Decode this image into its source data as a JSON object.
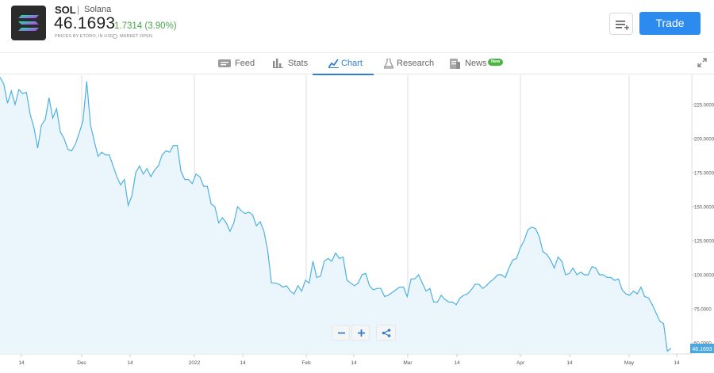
{
  "instrument": {
    "symbol": "SOL",
    "separator": "|",
    "name": "Solana",
    "price": "46.1693",
    "change": "1.7314 (3.90%)",
    "prices_note": "PRICES BY ETORO, IN USD",
    "market_status": "MARKET OPEN"
  },
  "actions": {
    "trade_label": "Trade",
    "menu_icon": "list-add-icon"
  },
  "tabs": [
    {
      "label": "Feed",
      "icon": "feed-icon"
    },
    {
      "label": "Stats",
      "icon": "bar-chart-icon"
    },
    {
      "label": "Chart",
      "icon": "line-chart-icon",
      "active": true
    },
    {
      "label": "Research",
      "icon": "flask-icon"
    },
    {
      "label": "News",
      "icon": "news-icon",
      "badge": "New"
    }
  ],
  "colors": {
    "accent": "#2d8bf0",
    "positive": "#4aa34a",
    "line": "#4fb1e0",
    "fill": "#eaf5fc",
    "badge": "#4bb543"
  },
  "chart_data": {
    "type": "area",
    "x_tick_labels": [
      "14",
      "Dec",
      "14",
      "2022",
      "14",
      "Feb",
      "14",
      "Mar",
      "14",
      "Apr",
      "14",
      "May",
      "14"
    ],
    "y_tick_labels": [
      "225.0000",
      "200.0000",
      "175.0000",
      "150.0000",
      "125.0000",
      "100.0000",
      "75.0000",
      "50.0000"
    ],
    "y_ticks": [
      225,
      200,
      175,
      150,
      125,
      100,
      75,
      50
    ],
    "ylim": [
      40,
      250
    ],
    "current_value_label": "46.1693",
    "grid": true,
    "values": [
      245,
      240,
      226,
      235,
      225,
      236,
      233,
      234,
      218,
      208,
      193,
      210,
      214,
      230,
      215,
      222,
      205,
      200,
      192,
      191,
      196,
      204,
      213,
      242,
      210,
      198,
      187,
      190,
      188,
      188,
      180,
      172,
      166,
      170,
      151,
      158,
      175,
      180,
      174,
      178,
      172,
      177,
      180,
      188,
      191,
      190,
      195,
      195,
      176,
      170,
      170,
      167,
      174,
      172,
      165,
      165,
      152,
      150,
      138,
      142,
      138,
      132,
      138,
      150,
      147,
      145,
      146,
      144,
      136,
      139,
      132,
      118,
      94,
      94,
      93,
      91,
      92,
      88,
      86,
      92,
      88,
      96,
      94,
      110,
      98,
      99,
      110,
      112,
      110,
      116,
      112,
      113,
      96,
      94,
      92,
      94,
      100,
      101,
      92,
      89,
      90,
      90,
      84,
      85,
      87,
      89,
      91,
      91,
      84,
      97,
      97,
      100,
      94,
      88,
      90,
      80,
      80,
      85,
      82,
      80,
      80,
      78,
      83,
      85,
      86,
      89,
      93,
      93,
      90,
      92,
      95,
      97,
      100,
      100,
      98,
      105,
      111,
      112,
      120,
      125,
      133,
      135,
      134,
      128,
      117,
      115,
      111,
      105,
      113,
      110,
      100,
      101,
      105,
      100,
      102,
      100,
      100,
      106,
      105,
      100,
      100,
      98,
      98,
      96,
      97,
      89,
      86,
      85,
      88,
      86,
      91,
      84,
      83,
      78,
      72,
      66,
      64,
      44,
      46.1693
    ]
  },
  "chart_controls": {
    "zoom_out_icon": "minus-icon",
    "zoom_in_icon": "plus-icon",
    "share_icon": "share-icon"
  }
}
